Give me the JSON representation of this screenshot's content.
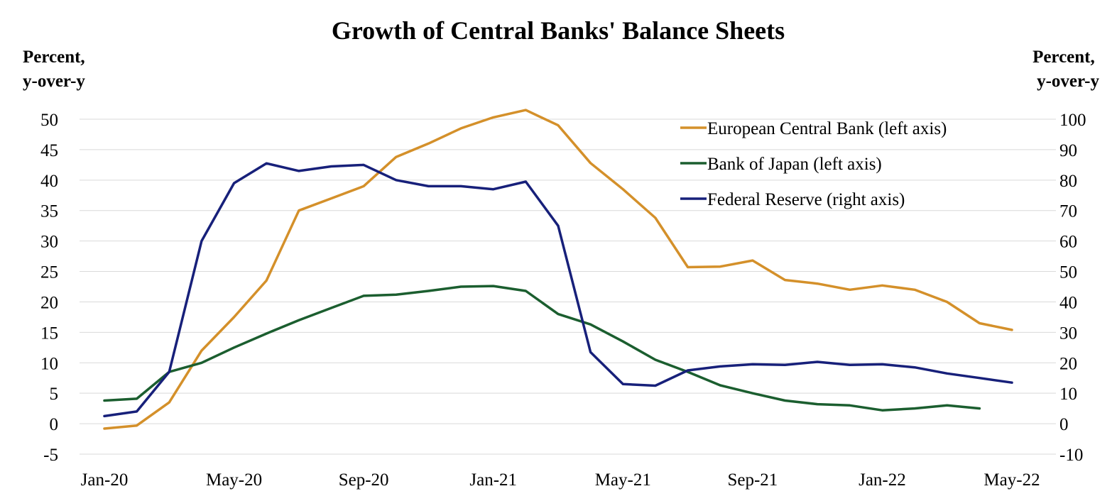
{
  "chart_data": {
    "type": "line",
    "title": "Growth of Central Banks' Balance Sheets",
    "left_axis_title": [
      "Percent,",
      "y-over-y"
    ],
    "right_axis_title": [
      "Percent,",
      "y-over-y"
    ],
    "x": [
      "Jan-20",
      "Feb-20",
      "Mar-20",
      "Apr-20",
      "May-20",
      "Jun-20",
      "Jul-20",
      "Aug-20",
      "Sep-20",
      "Oct-20",
      "Nov-20",
      "Dec-20",
      "Jan-21",
      "Feb-21",
      "Mar-21",
      "Apr-21",
      "May-21",
      "Jun-21",
      "Jul-21",
      "Aug-21",
      "Sep-21",
      "Oct-21",
      "Nov-21",
      "Dec-21",
      "Jan-22",
      "Feb-22",
      "Mar-22",
      "Apr-22",
      "May-22"
    ],
    "x_tick_labels": [
      "Jan-20",
      "May-20",
      "Sep-20",
      "Jan-21",
      "May-21",
      "Sep-21",
      "Jan-22",
      "May-22"
    ],
    "left_ylim": [
      -5,
      50
    ],
    "left_yticks": [
      -5,
      0,
      5,
      10,
      15,
      20,
      25,
      30,
      35,
      40,
      45,
      50
    ],
    "right_ylim": [
      -10,
      100
    ],
    "right_yticks": [
      -10,
      0,
      10,
      20,
      30,
      40,
      50,
      60,
      70,
      80,
      90,
      100
    ],
    "grid": true,
    "legend_position": "top-right",
    "series": [
      {
        "name": "European Central Bank (left axis)",
        "axis": "left",
        "color": "#d4902a",
        "values": [
          -0.8,
          -0.3,
          3.5,
          12.0,
          17.5,
          23.5,
          35.0,
          37.0,
          39.0,
          43.8,
          46.0,
          48.5,
          50.3,
          51.5,
          49.0,
          42.8,
          38.5,
          33.8,
          25.7,
          25.8,
          26.8,
          23.6,
          23.0,
          22.0,
          22.7,
          22.0,
          20.0,
          16.5,
          15.4
        ]
      },
      {
        "name": "Bank of Japan (left axis)",
        "axis": "left",
        "color": "#1b5e2f",
        "values": [
          3.8,
          4.1,
          8.5,
          10.0,
          12.5,
          14.8,
          17.0,
          19.0,
          21.0,
          21.2,
          21.8,
          22.5,
          22.6,
          21.8,
          18.0,
          16.3,
          13.5,
          10.5,
          8.5,
          6.3,
          5.0,
          3.8,
          3.2,
          3.0,
          2.2,
          2.5,
          3.0,
          2.5,
          null
        ]
      },
      {
        "name": "Federal Reserve (right axis)",
        "axis": "right",
        "color": "#17207a",
        "values": [
          2.5,
          4.0,
          17.0,
          60.0,
          79.0,
          85.5,
          83.0,
          84.5,
          85.0,
          80.0,
          78.0,
          78.0,
          77.0,
          79.5,
          65.0,
          23.5,
          13.0,
          12.5,
          17.5,
          18.8,
          19.5,
          19.3,
          20.3,
          19.3,
          19.5,
          18.5,
          16.5,
          15.0,
          13.5
        ]
      }
    ]
  }
}
